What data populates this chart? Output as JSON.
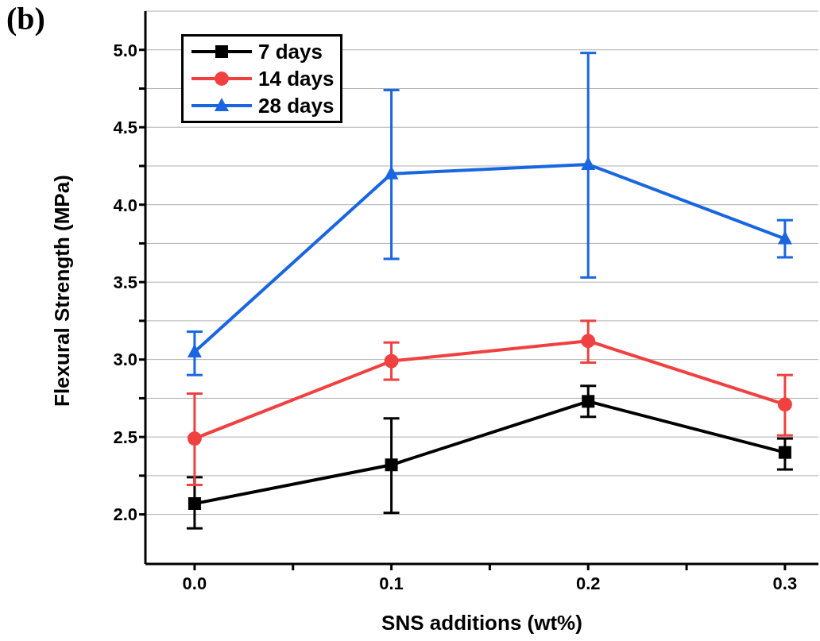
{
  "chart_data": {
    "type": "line",
    "xlabel": "SNS additions (wt%)",
    "ylabel": "Flexural Strength (MPa)",
    "annotations": [
      "(b)"
    ],
    "x": [
      0,
      0.1,
      0.2,
      0.3
    ],
    "xlim": [
      -0.025,
      0.317
    ],
    "xticks": [
      {
        "value": 0,
        "label": "0.0"
      },
      {
        "value": 0.05,
        "label": null
      },
      {
        "value": 0.1,
        "label": "0.1"
      },
      {
        "value": 0.15,
        "label": null
      },
      {
        "value": 0.2,
        "label": "0.2"
      },
      {
        "value": 0.25,
        "label": null
      },
      {
        "value": 0.3,
        "label": "0.3"
      }
    ],
    "ylim": [
      1.68,
      5.25
    ],
    "yticks": [
      {
        "value": 2,
        "label": "2.0"
      },
      {
        "value": 2.25,
        "label": null
      },
      {
        "value": 2.5,
        "label": "2.5"
      },
      {
        "value": 2.75,
        "label": null
      },
      {
        "value": 3,
        "label": "3.0"
      },
      {
        "value": 3.25,
        "label": null
      },
      {
        "value": 3.5,
        "label": "3.5"
      },
      {
        "value": 3.75,
        "label": null
      },
      {
        "value": 4,
        "label": "4.0"
      },
      {
        "value": 4.25,
        "label": null
      },
      {
        "value": 4.5,
        "label": "4.5"
      },
      {
        "value": 4.75,
        "label": null
      },
      {
        "value": 5,
        "label": "5.0"
      }
    ],
    "grid": "y",
    "legend": "top left",
    "line_style": "solid",
    "series": [
      {
        "name": "7 days",
        "color": "#000000",
        "marker": "square",
        "values": [
          2.07,
          2.32,
          2.73,
          2.4
        ],
        "errors": [
          [
            1.91,
            2.24
          ],
          [
            2.01,
            2.62
          ],
          [
            2.63,
            2.83
          ],
          [
            2.29,
            2.49
          ]
        ]
      },
      {
        "name": "14 days",
        "color": "#f04040",
        "marker": "circle",
        "values": [
          2.49,
          2.99,
          3.12,
          2.71
        ],
        "errors": [
          [
            2.19,
            2.78
          ],
          [
            2.87,
            3.11
          ],
          [
            2.98,
            3.25
          ],
          [
            2.51,
            2.9
          ]
        ]
      },
      {
        "name": "28 days",
        "color": "#1a66e0",
        "marker": "triangle",
        "values": [
          3.05,
          4.2,
          4.26,
          3.78
        ],
        "errors": [
          [
            2.9,
            3.18
          ],
          [
            3.65,
            4.74
          ],
          [
            3.53,
            4.98
          ],
          [
            3.66,
            3.9
          ]
        ]
      }
    ]
  }
}
